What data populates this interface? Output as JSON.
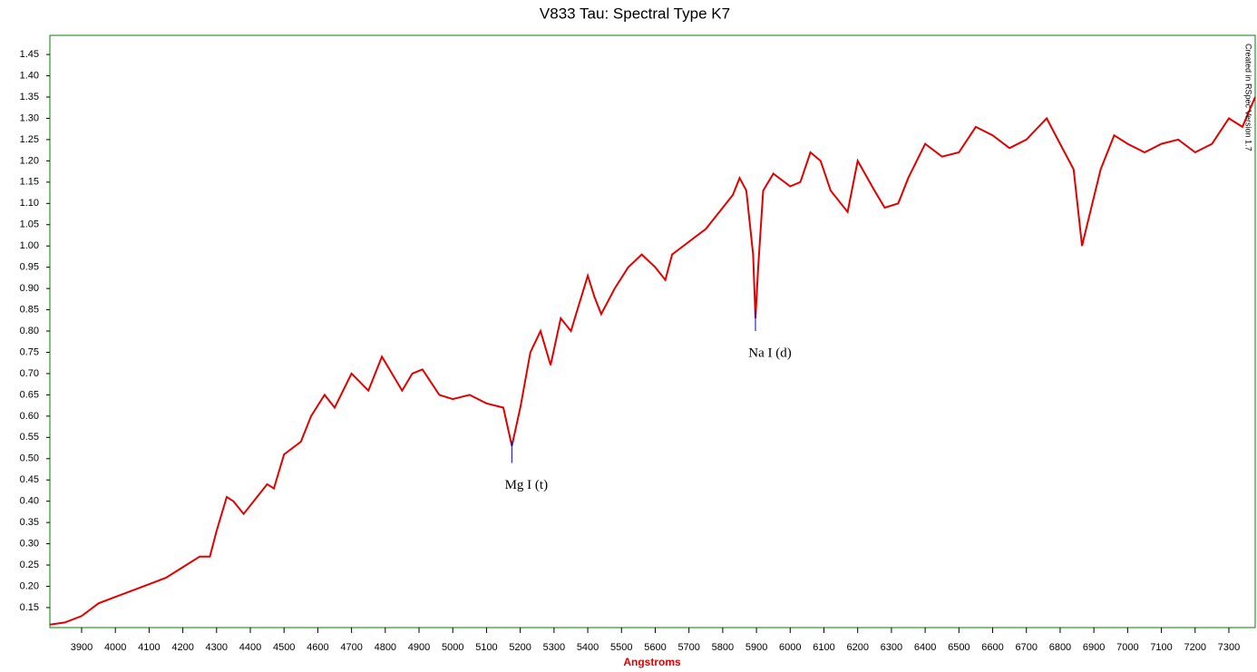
{
  "chart_data": {
    "type": "line",
    "title": "V833 Tau: Spectral Type K7",
    "x_label": "Angstroms",
    "note": "Created in RSpec Version 1.7",
    "color": "#e00000",
    "frame_color": "#008000",
    "annotation_color": "#0000cc",
    "xlim": [
      3806,
      7378
    ],
    "ylim": [
      0.103,
      1.495
    ],
    "xticks": [
      3900,
      4000,
      4100,
      4200,
      4300,
      4400,
      4500,
      4600,
      4700,
      4800,
      4900,
      5000,
      5100,
      5200,
      5300,
      5400,
      5500,
      5600,
      5700,
      5800,
      5900,
      6000,
      6100,
      6200,
      6300,
      6400,
      6500,
      6600,
      6700,
      6800,
      6900,
      7000,
      7100,
      7200,
      7300
    ],
    "yticks": [
      0.15,
      {
        "value": 0.2,
        "label": "0.20"
      },
      0.25,
      {
        "value": 0.3,
        "label": "0.30"
      },
      0.35,
      {
        "value": 0.4,
        "label": "0.40"
      },
      0.45,
      {
        "value": 0.5,
        "label": "0.50"
      },
      0.55,
      {
        "value": 0.6,
        "label": "0.60"
      },
      0.65,
      {
        "value": 0.7,
        "label": "0.70"
      },
      0.75,
      {
        "value": 0.8,
        "label": "0.80"
      },
      0.85,
      {
        "value": 0.9,
        "label": "0.90"
      },
      0.95,
      {
        "value": 1,
        "label": "1.00"
      },
      1.05,
      {
        "value": 1.1,
        "label": "1.10"
      },
      1.15,
      {
        "value": 1.2,
        "label": "1.20"
      },
      1.25,
      {
        "value": 1.3,
        "label": "1.30"
      },
      1.35,
      {
        "value": 1.4,
        "label": "1.40"
      },
      1.45
    ],
    "x": [
      3806,
      3850,
      3900,
      3950,
      4000,
      4050,
      4100,
      4150,
      4200,
      4250,
      4280,
      4300,
      4330,
      4350,
      4380,
      4420,
      4450,
      4470,
      4500,
      4550,
      4580,
      4620,
      4650,
      4700,
      4750,
      4790,
      4850,
      4880,
      4910,
      4960,
      5000,
      5050,
      5100,
      5150,
      5175,
      5200,
      5230,
      5260,
      5290,
      5320,
      5350,
      5400,
      5420,
      5440,
      5480,
      5520,
      5560,
      5600,
      5630,
      5650,
      5700,
      5750,
      5800,
      5830,
      5850,
      5870,
      5890,
      5897,
      5905,
      5920,
      5950,
      6000,
      6030,
      6060,
      6090,
      6120,
      6170,
      6200,
      6250,
      6280,
      6320,
      6350,
      6400,
      6450,
      6500,
      6550,
      6600,
      6650,
      6700,
      6760,
      6800,
      6840,
      6865,
      6880,
      6920,
      6960,
      7000,
      7050,
      7100,
      7150,
      7200,
      7250,
      7300,
      7340,
      7378
    ],
    "values": [
      0.11,
      0.115,
      0.13,
      0.16,
      0.175,
      0.19,
      0.205,
      0.22,
      0.245,
      0.27,
      0.27,
      0.33,
      0.41,
      0.4,
      0.37,
      0.41,
      0.44,
      0.43,
      0.51,
      0.54,
      0.6,
      0.65,
      0.62,
      0.7,
      0.66,
      0.74,
      0.66,
      0.7,
      0.71,
      0.65,
      0.64,
      0.65,
      0.63,
      0.62,
      0.53,
      0.62,
      0.75,
      0.8,
      0.72,
      0.83,
      0.8,
      0.93,
      0.88,
      0.84,
      0.9,
      0.95,
      0.98,
      0.95,
      0.92,
      0.98,
      1.01,
      1.04,
      1.09,
      1.12,
      1.16,
      1.13,
      0.98,
      0.83,
      0.95,
      1.13,
      1.17,
      1.14,
      1.15,
      1.22,
      1.2,
      1.13,
      1.08,
      1.2,
      1.13,
      1.09,
      1.1,
      1.16,
      1.24,
      1.21,
      1.22,
      1.28,
      1.26,
      1.23,
      1.25,
      1.3,
      1.24,
      1.18,
      1.0,
      1.05,
      1.18,
      1.26,
      1.24,
      1.22,
      1.24,
      1.25,
      1.22,
      1.24,
      1.3,
      1.28,
      1.35
    ],
    "annotations": [
      {
        "text": "Mg I (t)",
        "x": 5175,
        "y": 0.49
      },
      {
        "text": "Na I (d)",
        "x": 5897,
        "y": 0.8
      }
    ]
  }
}
